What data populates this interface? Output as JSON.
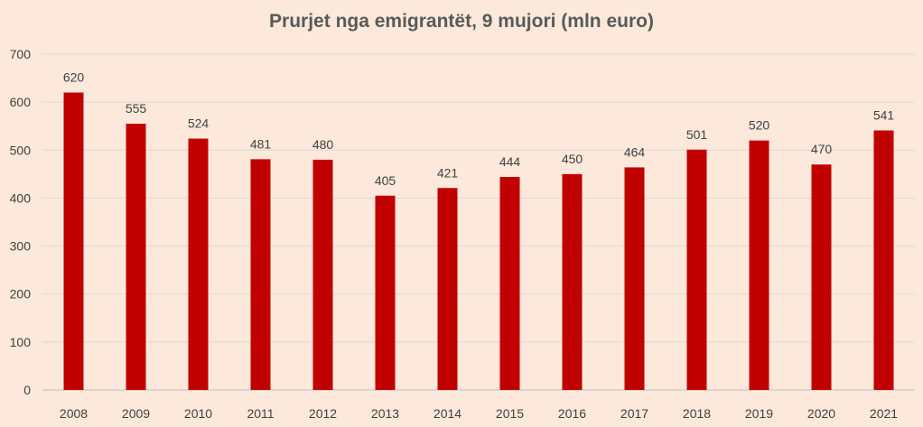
{
  "chart_data": {
    "type": "bar",
    "title": "Prurjet nga emigrantët, 9 mujori (mln euro)",
    "xlabel": "",
    "ylabel": "",
    "categories": [
      "2008",
      "2009",
      "2010",
      "2011",
      "2012",
      "2013",
      "2014",
      "2015",
      "2016",
      "2017",
      "2018",
      "2019",
      "2020",
      "2021"
    ],
    "values": [
      620,
      555,
      524,
      481,
      480,
      405,
      421,
      444,
      450,
      464,
      501,
      520,
      470,
      541
    ],
    "ylim": [
      0,
      700
    ],
    "yticks": [
      0,
      100,
      200,
      300,
      400,
      500,
      600,
      700
    ],
    "grid": true,
    "legend": "none",
    "colors": {
      "bar": "#c00000",
      "grid": "#d9d9d9",
      "background": "#fce9db"
    }
  }
}
